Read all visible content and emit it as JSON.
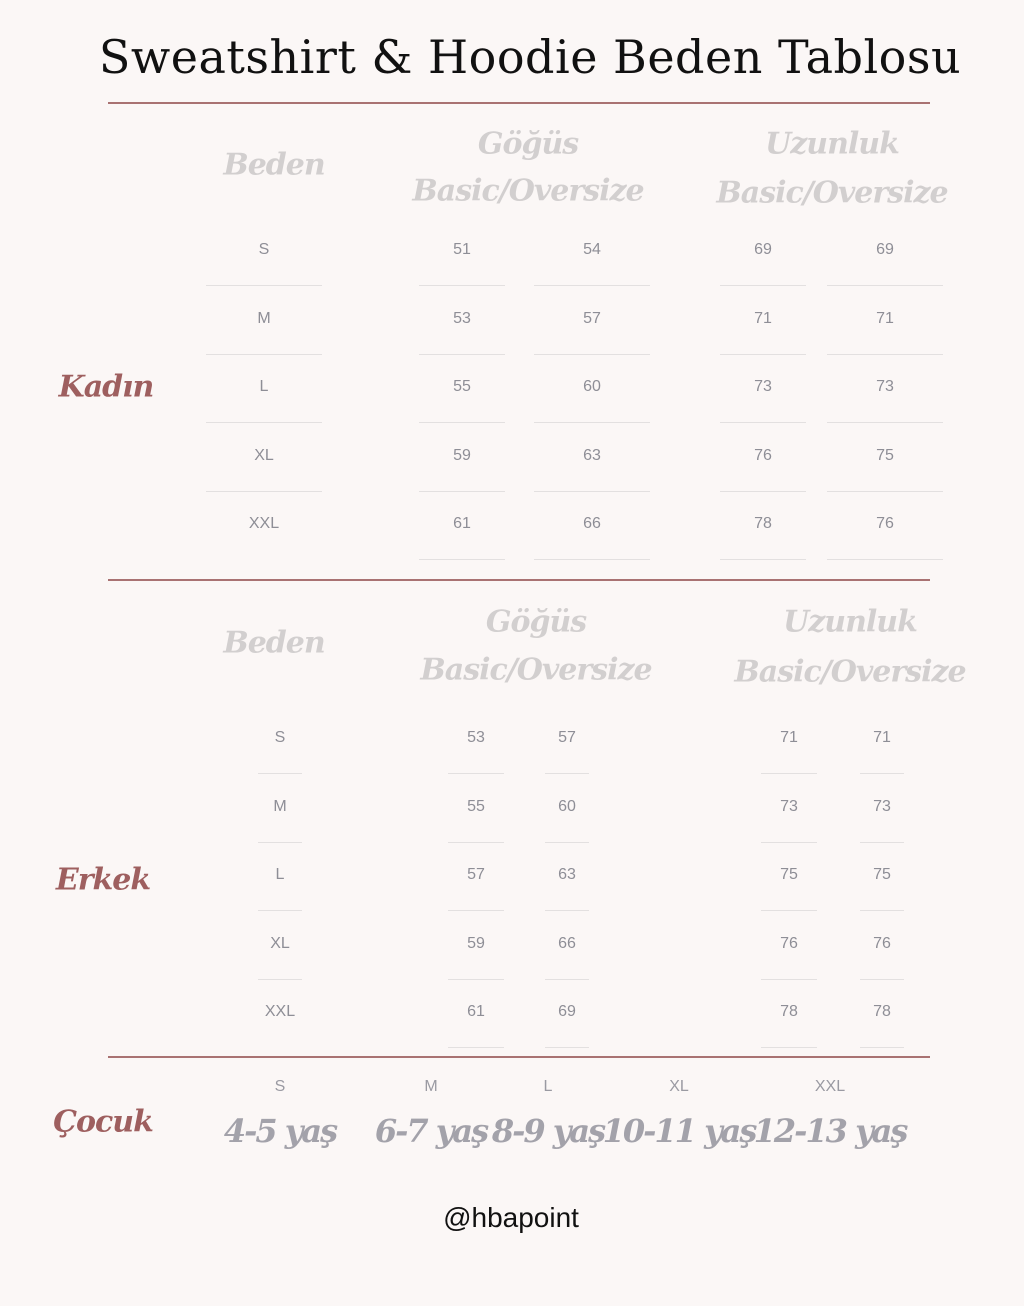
{
  "title": "Sweatshirt & Hoodie Beden Tablosu",
  "colors": {
    "accent": "#9e5f5f",
    "rule": "#a97272",
    "header": "#d2cfcf",
    "value": "#8e8e96"
  },
  "kadin": {
    "label": "Kadın",
    "headers": {
      "beden": "Beden",
      "gogus": "Göğüs",
      "gogus_sub": "Basic/Oversize",
      "uzunluk": "Uzunluk",
      "uzunluk_sub": "Basic/Oversize"
    },
    "rows": [
      {
        "size": "S",
        "gogus_basic": "51",
        "gogus_oversize": "54",
        "uzunluk_basic": "69",
        "uzunluk_oversize": "69"
      },
      {
        "size": "M",
        "gogus_basic": "53",
        "gogus_oversize": "57",
        "uzunluk_basic": "71",
        "uzunluk_oversize": "71"
      },
      {
        "size": "L",
        "gogus_basic": "55",
        "gogus_oversize": "60",
        "uzunluk_basic": "73",
        "uzunluk_oversize": "73"
      },
      {
        "size": "XL",
        "gogus_basic": "59",
        "gogus_oversize": "63",
        "uzunluk_basic": "76",
        "uzunluk_oversize": "75"
      },
      {
        "size": "XXL",
        "gogus_basic": "61",
        "gogus_oversize": "66",
        "uzunluk_basic": "78",
        "uzunluk_oversize": "76"
      }
    ]
  },
  "erkek": {
    "label": "Erkek",
    "headers": {
      "beden": "Beden",
      "gogus": "Göğüs",
      "gogus_sub": "Basic/Oversize",
      "uzunluk": "Uzunluk",
      "uzunluk_sub": "Basic/Oversize"
    },
    "rows": [
      {
        "size": "S",
        "gogus_basic": "53",
        "gogus_oversize": "57",
        "uzunluk_basic": "71",
        "uzunluk_oversize": "71"
      },
      {
        "size": "M",
        "gogus_basic": "55",
        "gogus_oversize": "60",
        "uzunluk_basic": "73",
        "uzunluk_oversize": "73"
      },
      {
        "size": "L",
        "gogus_basic": "57",
        "gogus_oversize": "63",
        "uzunluk_basic": "75",
        "uzunluk_oversize": "75"
      },
      {
        "size": "XL",
        "gogus_basic": "59",
        "gogus_oversize": "66",
        "uzunluk_basic": "76",
        "uzunluk_oversize": "76"
      },
      {
        "size": "XXL",
        "gogus_basic": "61",
        "gogus_oversize": "69",
        "uzunluk_basic": "78",
        "uzunluk_oversize": "78"
      }
    ]
  },
  "cocuk": {
    "label": "Çocuk",
    "items": [
      {
        "size": "S",
        "age": "4-5 yaş"
      },
      {
        "size": "M",
        "age": "6-7 yaş"
      },
      {
        "size": "L",
        "age": "8-9 yaş"
      },
      {
        "size": "XL",
        "age": "10-11 yaş"
      },
      {
        "size": "XXL",
        "age": "12-13 yaş"
      }
    ]
  },
  "footer": "@hbapoint"
}
